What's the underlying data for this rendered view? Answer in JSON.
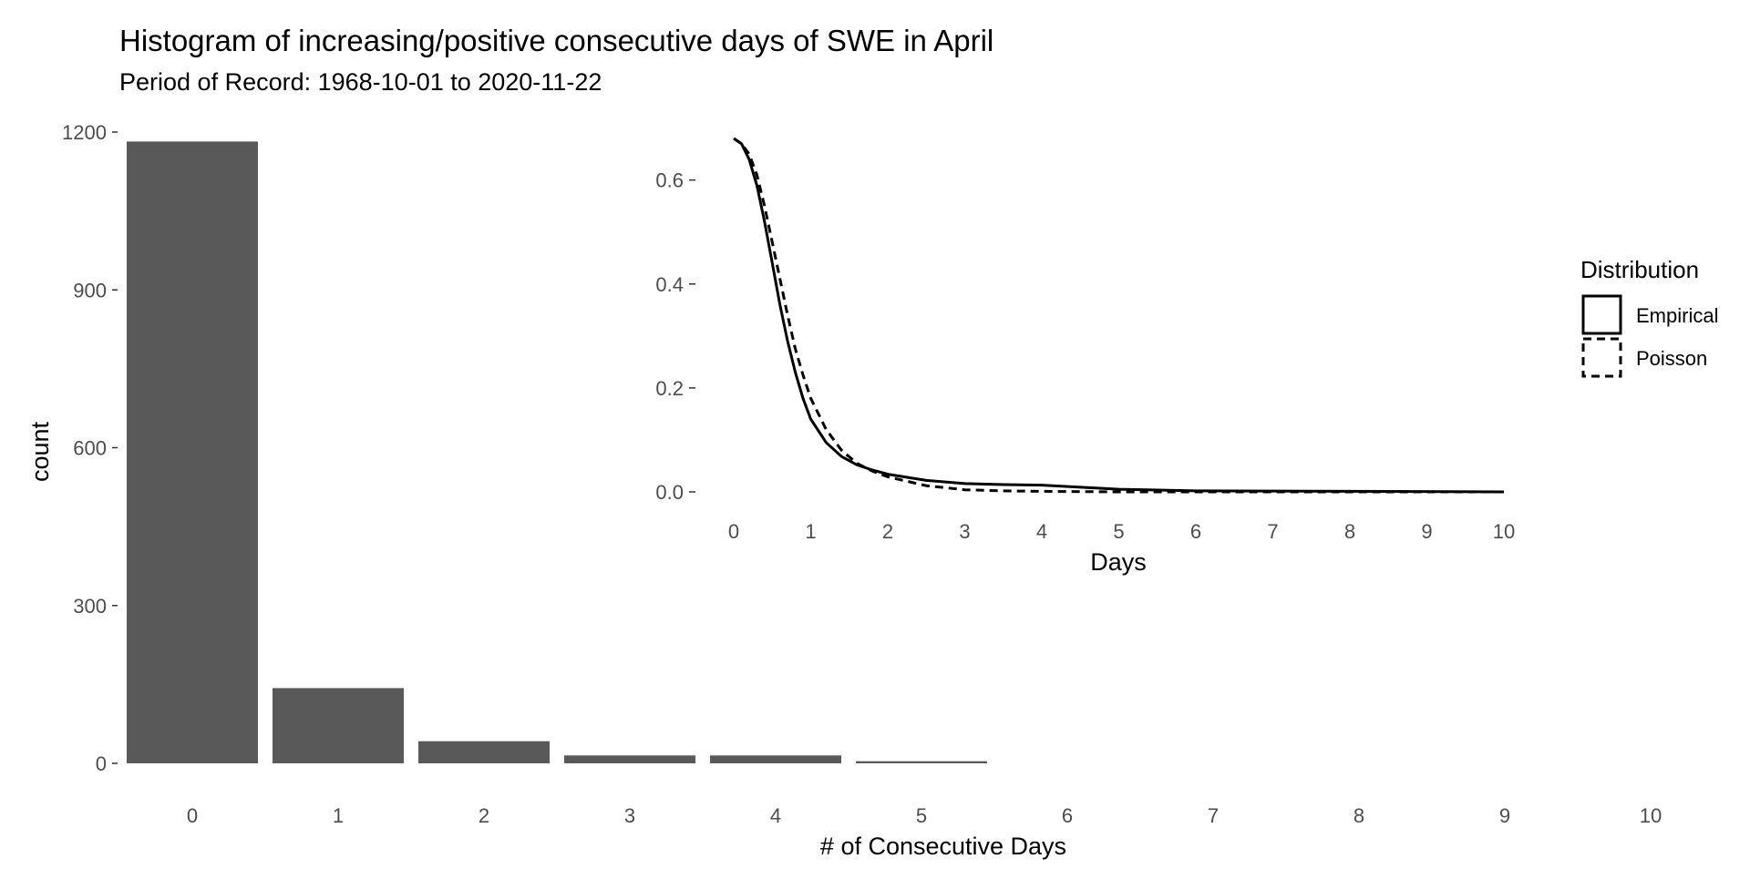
{
  "chart_data": [
    {
      "type": "bar",
      "title": "Histogram of increasing/positive consecutive days of  SWE in April",
      "subtitle": "Period of Record: 1968-10-01 to 2020-11-22",
      "xlabel": "# of Consecutive Days",
      "ylabel": "count",
      "categories": [
        0,
        1,
        2,
        3,
        4,
        5
      ],
      "values": [
        1182,
        143,
        42,
        15,
        15,
        4
      ],
      "x_ticks": [
        0,
        1,
        2,
        3,
        4,
        5,
        6,
        7,
        8,
        9,
        10
      ],
      "y_ticks": [
        0,
        300,
        600,
        900,
        1200
      ],
      "xlim": [
        -0.5,
        10
      ],
      "ylim": [
        0,
        1200
      ],
      "bar_color": "#595959",
      "grid": false
    },
    {
      "type": "line",
      "xlabel": "Days",
      "ylabel": "",
      "x_ticks": [
        0,
        1,
        2,
        3,
        4,
        5,
        6,
        7,
        8,
        9,
        10
      ],
      "y_ticks": [
        0.0,
        0.2,
        0.4,
        0.6
      ],
      "y_tick_labels": [
        "0.0",
        "0.2",
        "0.4",
        "0.6"
      ],
      "xlim": [
        0,
        10
      ],
      "ylim": [
        0,
        0.68
      ],
      "legend": {
        "title": "Distribution",
        "placement": "right"
      },
      "series": [
        {
          "name": "Empirical",
          "line_style": "solid",
          "points": [
            [
              0,
              0.68
            ],
            [
              0.1,
              0.67
            ],
            [
              0.2,
              0.64
            ],
            [
              0.3,
              0.59
            ],
            [
              0.4,
              0.52
            ],
            [
              0.5,
              0.44
            ],
            [
              0.6,
              0.36
            ],
            [
              0.7,
              0.29
            ],
            [
              0.8,
              0.23
            ],
            [
              0.9,
              0.18
            ],
            [
              1.0,
              0.14
            ],
            [
              1.2,
              0.095
            ],
            [
              1.4,
              0.068
            ],
            [
              1.6,
              0.052
            ],
            [
              1.8,
              0.042
            ],
            [
              2.0,
              0.034
            ],
            [
              2.5,
              0.022
            ],
            [
              3.0,
              0.016
            ],
            [
              3.5,
              0.014
            ],
            [
              4.0,
              0.013
            ],
            [
              4.5,
              0.009
            ],
            [
              5.0,
              0.005
            ],
            [
              6.0,
              0.002
            ],
            [
              8.0,
              0.001
            ],
            [
              10.0,
              0.0
            ]
          ]
        },
        {
          "name": "Poisson",
          "line_style": "dashed",
          "points": [
            [
              0,
              0.68
            ],
            [
              0.1,
              0.67
            ],
            [
              0.2,
              0.65
            ],
            [
              0.3,
              0.61
            ],
            [
              0.4,
              0.55
            ],
            [
              0.5,
              0.48
            ],
            [
              0.6,
              0.41
            ],
            [
              0.7,
              0.34
            ],
            [
              0.8,
              0.275
            ],
            [
              0.9,
              0.225
            ],
            [
              1.0,
              0.18
            ],
            [
              1.2,
              0.12
            ],
            [
              1.4,
              0.08
            ],
            [
              1.6,
              0.055
            ],
            [
              1.8,
              0.04
            ],
            [
              2.0,
              0.029
            ],
            [
              2.5,
              0.012
            ],
            [
              3.0,
              0.004
            ],
            [
              3.5,
              0.002
            ],
            [
              4.0,
              0.001
            ],
            [
              5.0,
              0.0
            ],
            [
              10.0,
              0.0
            ]
          ]
        }
      ]
    }
  ]
}
